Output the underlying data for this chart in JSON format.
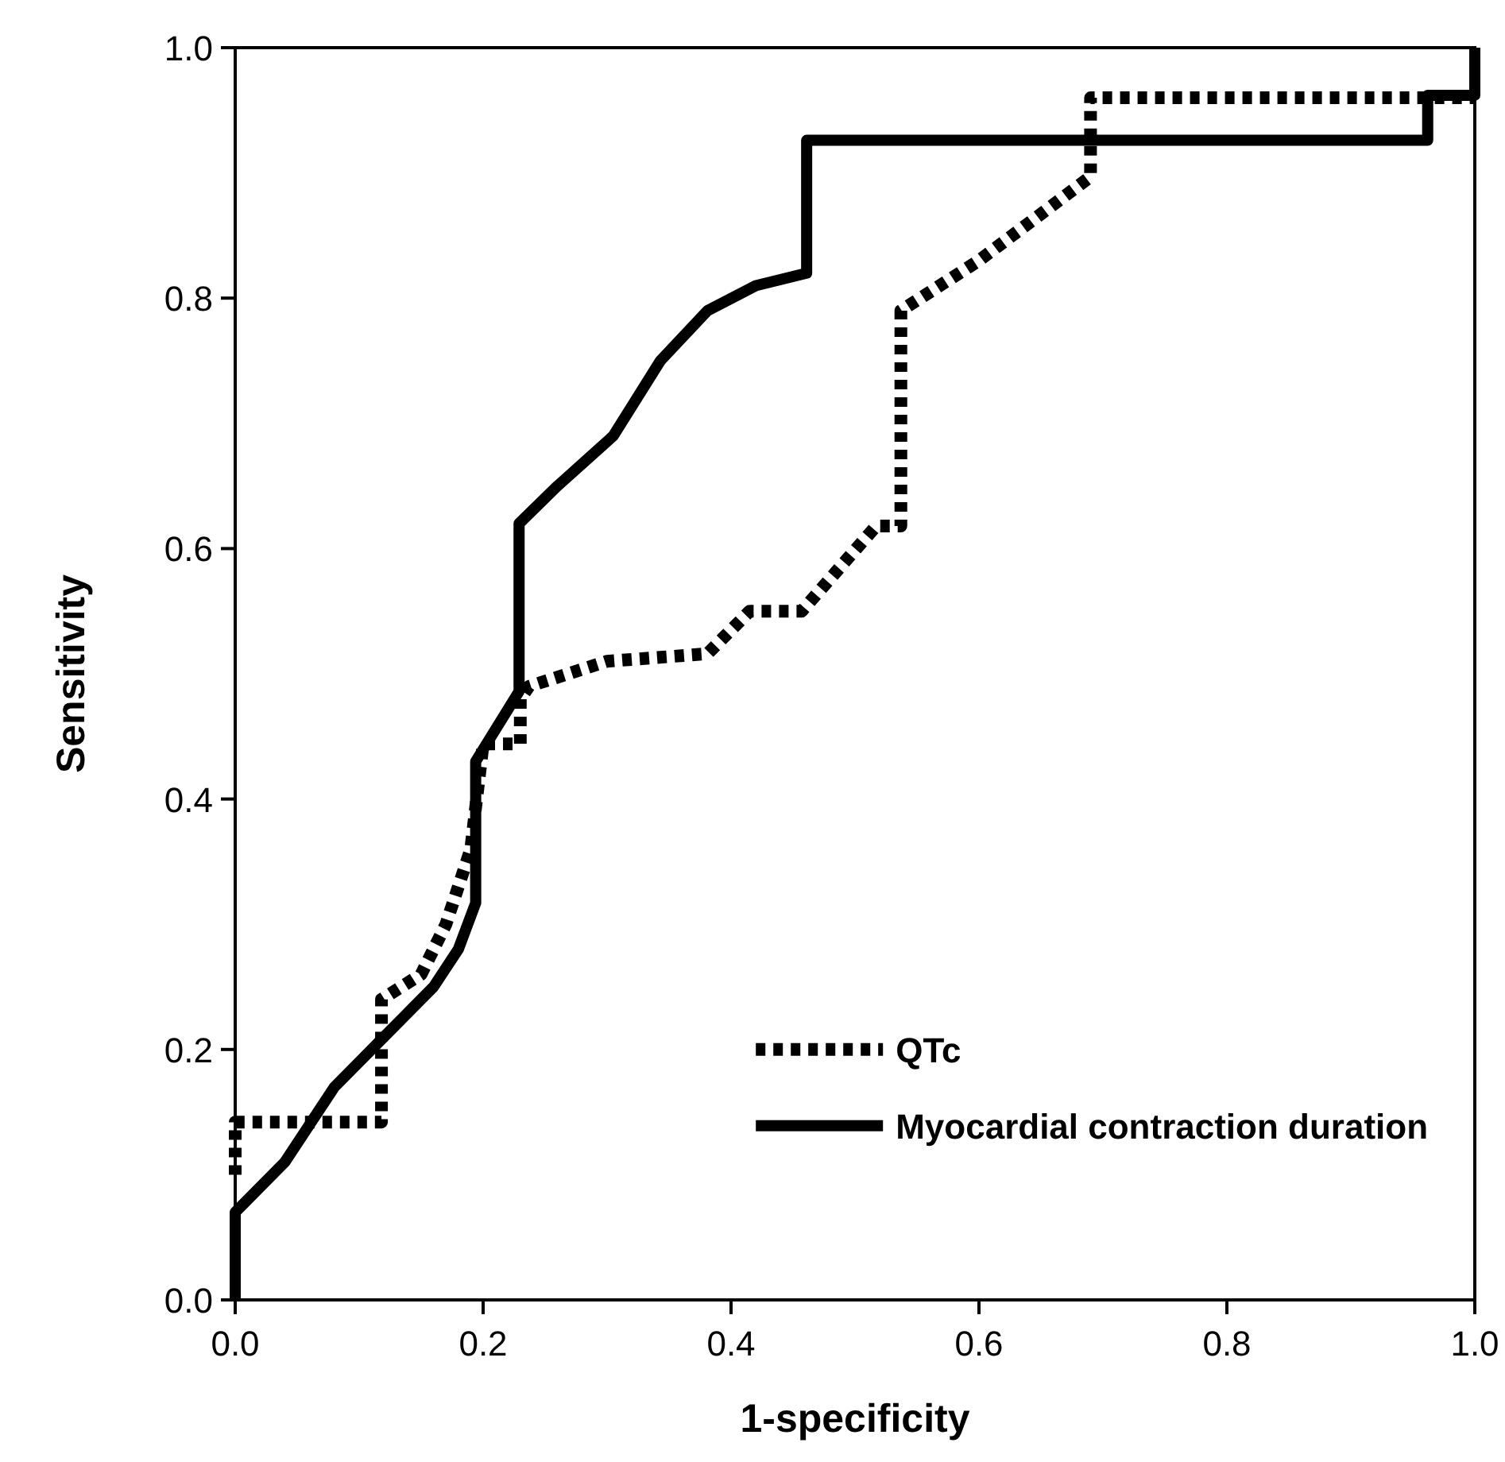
{
  "chart_data": {
    "type": "line",
    "xlabel": "1-specificity",
    "ylabel": "Sensitivity",
    "xlim": [
      0,
      1
    ],
    "ylim": [
      0,
      1
    ],
    "xticks": [
      {
        "value": 0,
        "label": "0.0"
      },
      0.2,
      0.4,
      0.6,
      0.8,
      {
        "value": 1,
        "label": "1.0"
      }
    ],
    "yticks": [
      {
        "value": 0,
        "label": "0.0"
      },
      0.2,
      0.4,
      0.6,
      0.8,
      {
        "value": 1,
        "label": "1.0"
      }
    ],
    "grid": false,
    "legend": "bottom right",
    "marker": "none",
    "series": [
      {
        "name": "QTc",
        "color": "#000000",
        "line_style": "dotted",
        "x": [
          0,
          0,
          0.118,
          0.118,
          0.15,
          0.17,
          0.19,
          0.2,
          0.23,
          0.23,
          0.237,
          0.3,
          0.381,
          0.415,
          0.457,
          0.517,
          0.537,
          0.537,
          0.6,
          0.69,
          0.69,
          1
        ],
        "values": [
          0.1,
          0.142,
          0.142,
          0.24,
          0.26,
          0.3,
          0.36,
          0.444,
          0.444,
          0.48,
          0.49,
          0.51,
          0.516,
          0.55,
          0.55,
          0.618,
          0.618,
          0.79,
          0.83,
          0.897,
          0.96,
          0.96
        ]
      },
      {
        "name": "Myocardial contraction duration",
        "color": "#000000",
        "line_style": "solid",
        "x": [
          0,
          0,
          0.02,
          0.04,
          0.06,
          0.08,
          0.1,
          0.12,
          0.14,
          0.16,
          0.18,
          0.194,
          0.194,
          0.229,
          0.229,
          0.26,
          0.305,
          0.343,
          0.381,
          0.42,
          0.461,
          0.461,
          0.962,
          0.962,
          1,
          1
        ],
        "values": [
          0,
          0.07,
          0.09,
          0.11,
          0.14,
          0.17,
          0.19,
          0.21,
          0.23,
          0.25,
          0.28,
          0.317,
          0.43,
          0.486,
          0.62,
          0.65,
          0.69,
          0.75,
          0.79,
          0.81,
          0.82,
          0.926,
          0.926,
          0.962,
          0.962,
          1
        ]
      }
    ]
  }
}
